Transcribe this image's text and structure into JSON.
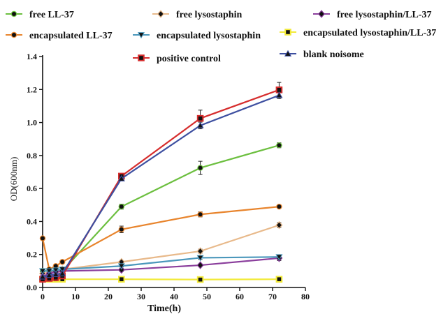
{
  "chart_data": {
    "type": "line",
    "xlabel": "Time(h)",
    "ylabel": "OD(600nm)",
    "xlim": [
      0,
      80
    ],
    "ylim": [
      0,
      1.4
    ],
    "xticks": [
      "0",
      "10",
      "20",
      "30",
      "40",
      "50",
      "60",
      "70",
      "80"
    ],
    "yticks": [
      "0.0",
      "0.2",
      "0.4",
      "0.6",
      "0.8",
      "1.0",
      "1.2",
      "1.4"
    ],
    "grid": false,
    "legend_position": "top",
    "series": [
      {
        "name": "free LL-37",
        "color": "#6cbf3f",
        "marker": "circle",
        "x": [
          0,
          2,
          4,
          6,
          24,
          48,
          72
        ],
        "y": [
          0.1,
          0.1,
          0.1,
          0.1,
          0.49,
          0.725,
          0.862
        ],
        "err": [
          0.005,
          0.005,
          0.005,
          0.005,
          0.015,
          0.04,
          0.015
        ]
      },
      {
        "name": "free lysostaphin",
        "color": "#e8b98a",
        "marker": "diamond",
        "x": [
          0,
          2,
          4,
          6,
          24,
          48,
          72
        ],
        "y": [
          0.085,
          0.09,
          0.1,
          0.11,
          0.155,
          0.22,
          0.378
        ],
        "err": [
          0.005,
          0.005,
          0.005,
          0.005,
          0.008,
          0.012,
          0.015
        ]
      },
      {
        "name": "free lysostaphin/LL-37",
        "color": "#8a3e9c",
        "marker": "diamond",
        "x": [
          0,
          2,
          4,
          6,
          24,
          48,
          72
        ],
        "y": [
          0.065,
          0.085,
          0.095,
          0.1,
          0.107,
          0.135,
          0.178
        ],
        "err": [
          0.005,
          0.005,
          0.005,
          0.005,
          0.01,
          0.008,
          0.015
        ]
      },
      {
        "name": "encapsulated LL-37",
        "color": "#e8842c",
        "marker": "circle",
        "x": [
          0,
          2,
          4,
          6,
          24,
          48,
          72
        ],
        "y": [
          0.298,
          0.11,
          0.13,
          0.155,
          0.352,
          0.443,
          0.49
        ],
        "err": [
          0.005,
          0.005,
          0.005,
          0.005,
          0.02,
          0.015,
          0.005
        ]
      },
      {
        "name": "encapsulated lysostaphin",
        "color": "#4a97bb",
        "marker": "triangle-down",
        "x": [
          0,
          2,
          4,
          6,
          24,
          48,
          72
        ],
        "y": [
          0.1,
          0.1,
          0.105,
          0.11,
          0.13,
          0.18,
          0.185
        ],
        "err": [
          0.005,
          0.005,
          0.005,
          0.005,
          0.005,
          0.01,
          0.008
        ]
      },
      {
        "name": "encapsulated lysostaphin/LL-37",
        "color": "#f2ea3a",
        "marker": "square",
        "x": [
          0,
          2,
          4,
          6,
          24,
          48,
          72
        ],
        "y": [
          0.05,
          0.05,
          0.05,
          0.05,
          0.05,
          0.048,
          0.05
        ],
        "err": [
          0.002,
          0.002,
          0.002,
          0.002,
          0.002,
          0.002,
          0.002
        ]
      },
      {
        "name": "positive control",
        "color": "#d62d2d",
        "marker": "square",
        "x": [
          0,
          2,
          4,
          6,
          24,
          48,
          72
        ],
        "y": [
          0.05,
          0.055,
          0.06,
          0.07,
          0.675,
          1.025,
          1.198
        ],
        "err": [
          0.003,
          0.003,
          0.003,
          0.003,
          0.01,
          0.05,
          0.045
        ]
      },
      {
        "name": "blank noisome",
        "color": "#3d4fa0",
        "marker": "triangle-up",
        "x": [
          0,
          2,
          4,
          6,
          24,
          48,
          72
        ],
        "y": [
          0.065,
          0.075,
          0.08,
          0.085,
          0.66,
          0.982,
          1.165
        ],
        "err": [
          0.003,
          0.003,
          0.003,
          0.003,
          0.01,
          0.02,
          0.02
        ]
      }
    ]
  }
}
